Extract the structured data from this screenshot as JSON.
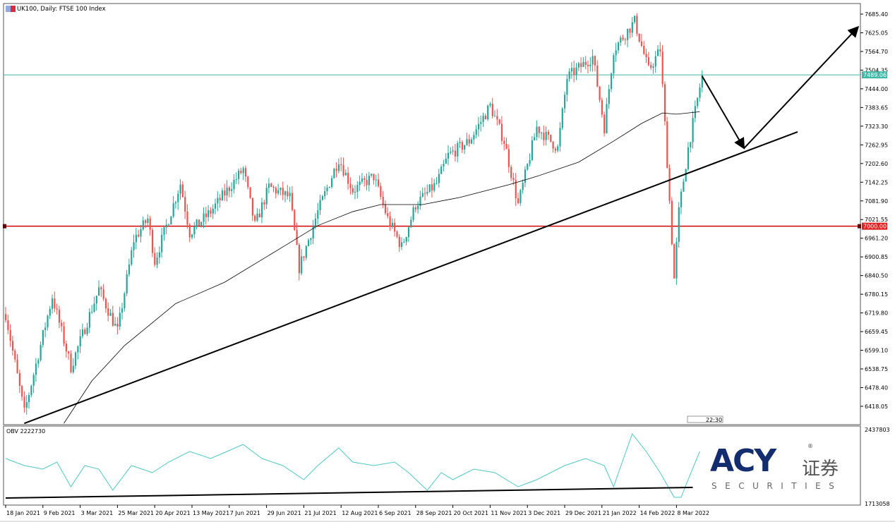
{
  "header": {
    "title": "UK100, Daily:  FTSE 100 Index"
  },
  "indicator": {
    "label": "OBV 2222730"
  },
  "logo": {
    "brand": "ACY",
    "chinese": "证券",
    "sub": "SECURITIES",
    "reg": "®"
  },
  "corner_label": "22:30",
  "colors": {
    "up": "#26a69a",
    "down": "#ef5350",
    "ma": "#000000",
    "support": "#d00000",
    "current": "#3fb8a8",
    "obv": "#4fc6c6"
  },
  "chart_data": [
    {
      "type": "candlestick",
      "title": "UK100, Daily:  FTSE 100 Index",
      "x_unit": "bar index",
      "ylim": [
        6400,
        7700
      ],
      "y_ticks": [
        "7685.40",
        "7625.05",
        "7564.70",
        "7504.35",
        "7444.00",
        "7383.65",
        "7323.30",
        "7262.95",
        "7202.60",
        "7142.25",
        "7081.90",
        "7021.55",
        "6961.20",
        "6900.85",
        "6840.50",
        "6780.15",
        "6719.80",
        "6659.45",
        "6599.10",
        "6538.75",
        "6478.40",
        "6418.05"
      ],
      "x_ticks": [
        {
          "bar": 0,
          "label": "18 Jan 2021"
        },
        {
          "bar": 16,
          "label": "9 Feb 2021"
        },
        {
          "bar": 32,
          "label": "3 Mar 2021"
        },
        {
          "bar": 48,
          "label": "25 Mar 2021"
        },
        {
          "bar": 64,
          "label": "20 Apr 2021"
        },
        {
          "bar": 80,
          "label": "13 May 2021"
        },
        {
          "bar": 96,
          "label": "7 Jun 2021"
        },
        {
          "bar": 112,
          "label": "29 Jun 2021"
        },
        {
          "bar": 128,
          "label": "21 Jul 2021"
        },
        {
          "bar": 144,
          "label": "12 Aug 2021"
        },
        {
          "bar": 160,
          "label": "6 Sep 2021"
        },
        {
          "bar": 176,
          "label": "28 Sep 2021"
        },
        {
          "bar": 192,
          "label": "20 Oct 2021"
        },
        {
          "bar": 208,
          "label": "11 Nov 2021"
        },
        {
          "bar": 224,
          "label": "3 Dec 2021"
        },
        {
          "bar": 240,
          "label": "29 Dec 2021"
        },
        {
          "bar": 256,
          "label": "21 Jan 2022"
        },
        {
          "bar": 272,
          "label": "14 Feb 2022"
        },
        {
          "bar": 288,
          "label": "8 Mar 2022"
        }
      ],
      "closes": [
        [
          0,
          6716
        ],
        [
          8,
          6397
        ],
        [
          20,
          6773
        ],
        [
          28,
          6545
        ],
        [
          40,
          6797
        ],
        [
          48,
          6660
        ],
        [
          55,
          6956
        ],
        [
          61,
          7024
        ],
        [
          64,
          6887
        ],
        [
          75,
          7138
        ],
        [
          79,
          6979
        ],
        [
          88,
          7047
        ],
        [
          102,
          7184
        ],
        [
          107,
          7002
        ],
        [
          113,
          7127
        ],
        [
          122,
          7093
        ],
        [
          126,
          6865
        ],
        [
          134,
          7047
        ],
        [
          143,
          7218
        ],
        [
          149,
          7116
        ],
        [
          158,
          7161
        ],
        [
          164,
          7024
        ],
        [
          170,
          6933
        ],
        [
          176,
          7070
        ],
        [
          185,
          7138
        ],
        [
          190,
          7229
        ],
        [
          199,
          7275
        ],
        [
          208,
          7389
        ],
        [
          214,
          7275
        ],
        [
          220,
          7070
        ],
        [
          228,
          7320
        ],
        [
          237,
          7252
        ],
        [
          241,
          7480
        ],
        [
          252,
          7548
        ],
        [
          257,
          7320
        ],
        [
          261,
          7571
        ],
        [
          270,
          7662
        ],
        [
          276,
          7503
        ],
        [
          281,
          7571
        ],
        [
          284,
          7207
        ],
        [
          287,
          6830
        ],
        [
          289,
          7047
        ],
        [
          293,
          7252
        ],
        [
          299,
          7489.06
        ]
      ],
      "moving_average": [
        [
          25,
          6363
        ],
        [
          37,
          6500
        ],
        [
          51,
          6614
        ],
        [
          73,
          6750
        ],
        [
          94,
          6819
        ],
        [
          119,
          6933
        ],
        [
          134,
          7002
        ],
        [
          149,
          7047
        ],
        [
          161,
          7070
        ],
        [
          179,
          7070
        ],
        [
          195,
          7093
        ],
        [
          216,
          7134
        ],
        [
          228,
          7161
        ],
        [
          246,
          7207
        ],
        [
          261,
          7275
        ],
        [
          273,
          7332
        ],
        [
          282,
          7366
        ],
        [
          288,
          7362
        ],
        [
          298,
          7370
        ]
      ],
      "horizontal_lines": [
        {
          "price": 7000.0,
          "label": "7000.00",
          "color": "#d00000"
        },
        {
          "price": 7489.06,
          "label": "7489.06",
          "color": "#3fb8a8"
        }
      ],
      "trendline": [
        [
          8,
          6363
        ],
        [
          340,
          7305
        ]
      ],
      "projection_arrows": [
        [
          299,
          7485
        ],
        [
          317,
          7252
        ],
        [
          366,
          7644
        ]
      ]
    },
    {
      "type": "line",
      "name": "OBV",
      "ylim": [
        1713058,
        2437803
      ],
      "y_ticks": [
        "2437803",
        "1713058"
      ],
      "values": [
        [
          0,
          2142519
        ],
        [
          8,
          2075409
        ],
        [
          16,
          2041854
        ],
        [
          22,
          2108964
        ],
        [
          28,
          1874079
        ],
        [
          34,
          2075409
        ],
        [
          40,
          2041854
        ],
        [
          46,
          1840524
        ],
        [
          54,
          2075409
        ],
        [
          63,
          2008299
        ],
        [
          70,
          2108964
        ],
        [
          79,
          2209629
        ],
        [
          88,
          2142519
        ],
        [
          95,
          2209629
        ],
        [
          102,
          2276739
        ],
        [
          110,
          2142519
        ],
        [
          119,
          2075409
        ],
        [
          128,
          1941189
        ],
        [
          134,
          2075409
        ],
        [
          143,
          2243184
        ],
        [
          149,
          2108964
        ],
        [
          158,
          2075409
        ],
        [
          167,
          2108964
        ],
        [
          173,
          2008299
        ],
        [
          181,
          1840524
        ],
        [
          187,
          2008299
        ],
        [
          192,
          1941189
        ],
        [
          201,
          2041854
        ],
        [
          210,
          2008299
        ],
        [
          220,
          1874079
        ],
        [
          228,
          1941189
        ],
        [
          240,
          2075409
        ],
        [
          249,
          2142519
        ],
        [
          257,
          2075409
        ],
        [
          261,
          1874079
        ],
        [
          269,
          2377404
        ],
        [
          275,
          2209629
        ],
        [
          281,
          2008299
        ],
        [
          287,
          1773414
        ],
        [
          290,
          1773414
        ],
        [
          293,
          1941189
        ],
        [
          298,
          2209629
        ]
      ],
      "support_line": [
        [
          0,
          1766703
        ],
        [
          295,
          1867368
        ]
      ]
    }
  ]
}
